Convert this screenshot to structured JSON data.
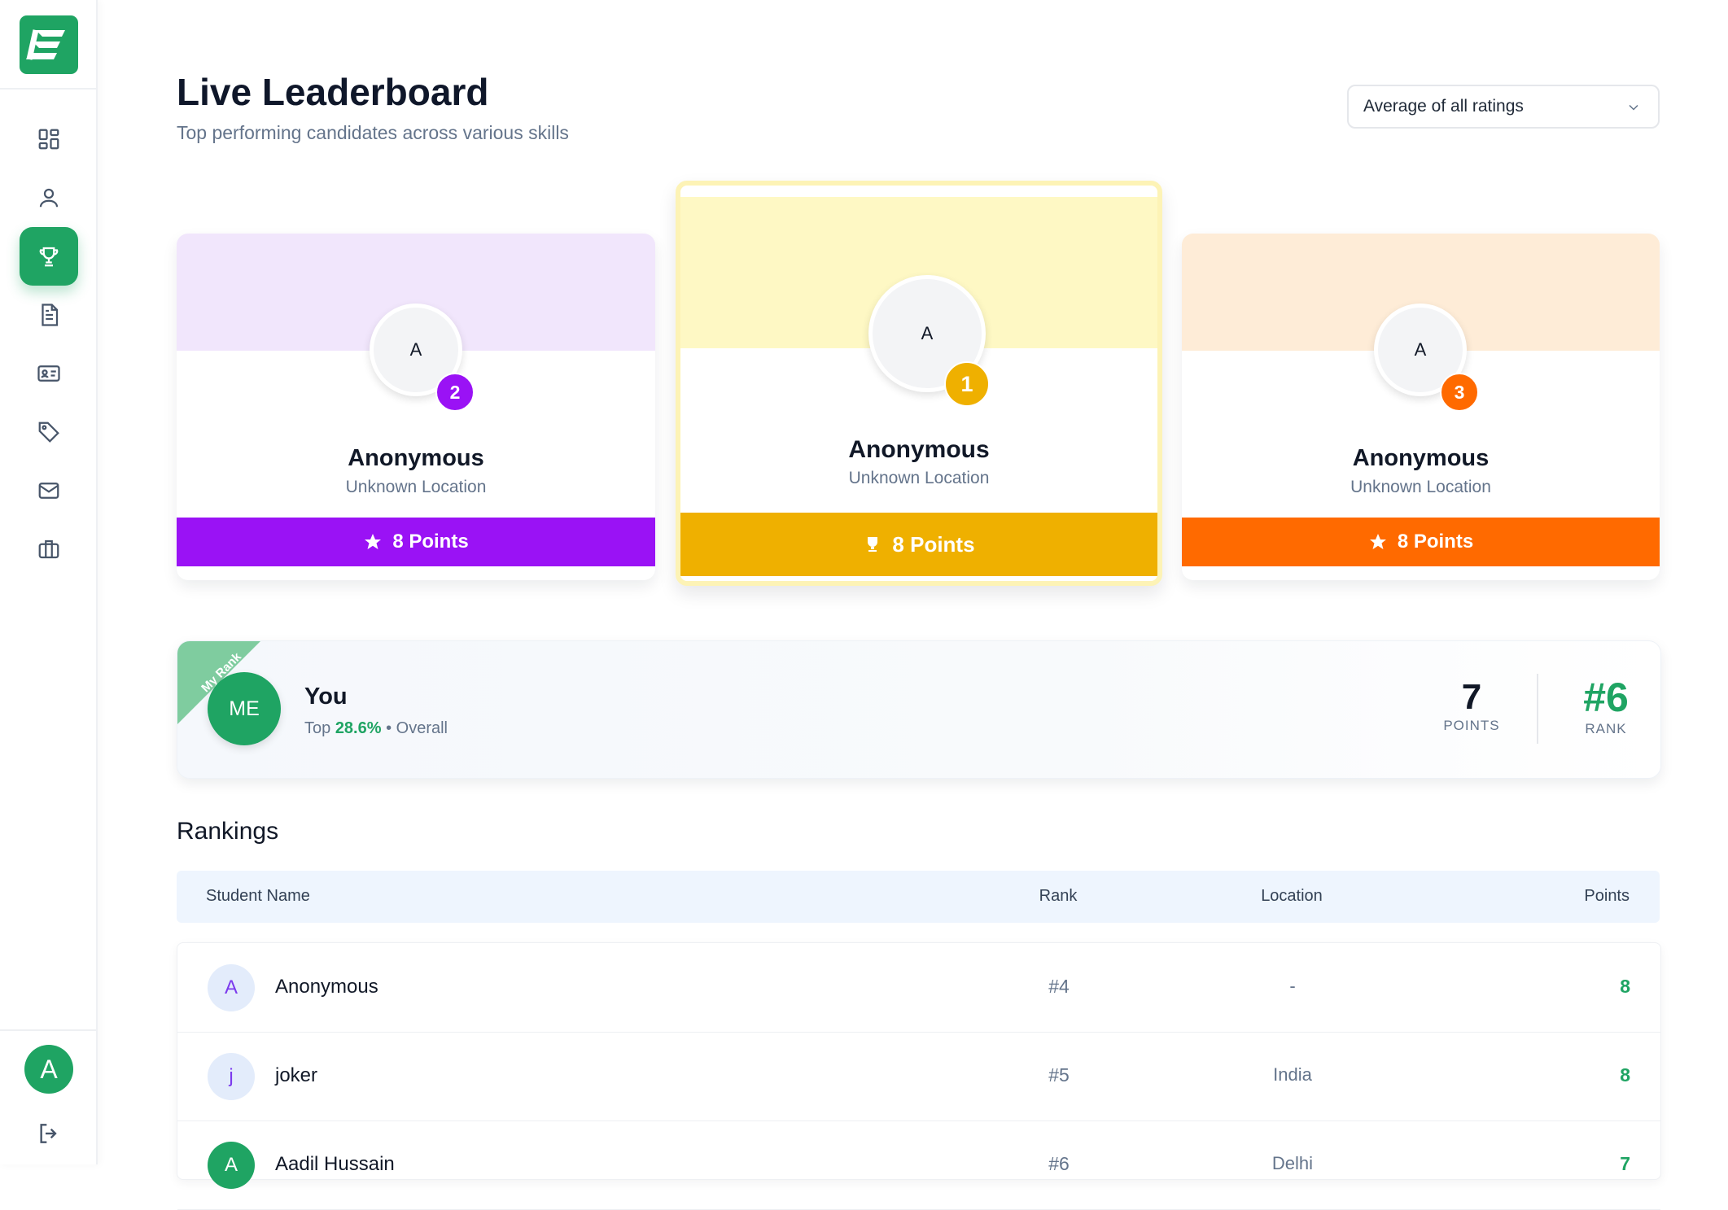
{
  "header": {
    "title": "Live Leaderboard",
    "subtitle": "Top performing candidates across various skills",
    "filter_value": "Average of all ratings"
  },
  "sidebar": {
    "items": [
      {
        "icon": "dashboard-icon"
      },
      {
        "icon": "user-icon"
      },
      {
        "icon": "trophy-icon",
        "active": true
      },
      {
        "icon": "document-icon"
      },
      {
        "icon": "id-card-icon"
      },
      {
        "icon": "tag-icon"
      },
      {
        "icon": "mail-icon"
      },
      {
        "icon": "briefcase-icon"
      }
    ],
    "user_initial": "A"
  },
  "podium": {
    "second": {
      "initial": "A",
      "rank": "2",
      "name": "Anonymous",
      "location": "Unknown Location",
      "points": "8 Points",
      "color": "#9a12f5"
    },
    "first": {
      "initial": "A",
      "rank": "1",
      "name": "Anonymous",
      "location": "Unknown Location",
      "points": "8 Points",
      "color": "#efb000"
    },
    "third": {
      "initial": "A",
      "rank": "3",
      "name": "Anonymous",
      "location": "Unknown Location",
      "points": "8 Points",
      "color": "#ff6a00"
    }
  },
  "my_rank": {
    "ribbon": "My Rank",
    "initials": "ME",
    "name": "You",
    "sub_prefix": "Top",
    "percent": "28.6%",
    "sub_suffix": "• Overall",
    "points": "7",
    "points_label": "POINTS",
    "rank": "#6",
    "rank_label": "RANK"
  },
  "rankings": {
    "heading": "Rankings",
    "columns": [
      "Student Name",
      "Rank",
      "Location",
      "Points"
    ],
    "rows": [
      {
        "initial": "A",
        "name": "Anonymous",
        "rank": "#4",
        "location": "-",
        "points": "8"
      },
      {
        "initial": "j",
        "name": "joker",
        "rank": "#5",
        "location": "India",
        "points": "8"
      },
      {
        "initial": "A",
        "name": "Aadil Hussain",
        "rank": "#6",
        "location": "Delhi",
        "points": "7"
      }
    ]
  },
  "colors": {
    "brand": "#1fa463",
    "second": "#9a12f5",
    "first": "#efb000",
    "third": "#ff6a00"
  }
}
